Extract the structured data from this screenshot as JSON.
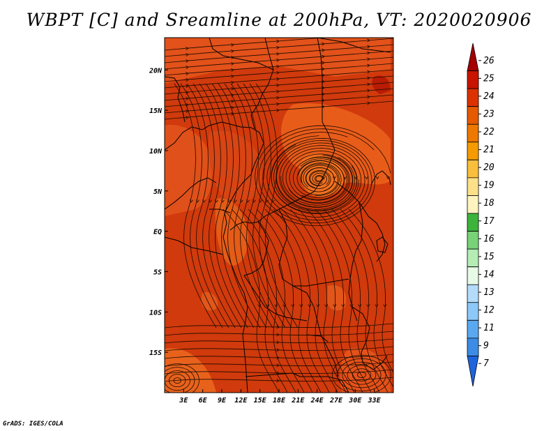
{
  "title": "WBPT [C] and Sreamline at 200hPa, VT: 2020020906",
  "footer": "GrADS: IGES/COLA",
  "map": {
    "lon_range": [
      0,
      36
    ],
    "lat_range": [
      -20,
      24
    ],
    "x_ticks": [
      "3E",
      "6E",
      "9E",
      "12E",
      "15E",
      "18E",
      "21E",
      "24E",
      "27E",
      "30E",
      "33E"
    ],
    "x_tick_values": [
      3,
      6,
      9,
      12,
      15,
      18,
      21,
      24,
      27,
      30,
      33
    ],
    "y_ticks": [
      "20N",
      "15N",
      "10N",
      "5N",
      "EQ",
      "5S",
      "10S",
      "15S"
    ],
    "y_tick_values": [
      20,
      15,
      10,
      5,
      0,
      -5,
      -10,
      -15
    ]
  },
  "colorbar": {
    "levels": [
      "26",
      "25",
      "24",
      "23",
      "22",
      "21",
      "20",
      "19",
      "18",
      "17",
      "16",
      "15",
      "14",
      "13",
      "12",
      "11",
      "9",
      "7"
    ],
    "colors": [
      "#a40000",
      "#c81400",
      "#dc3200",
      "#e65a00",
      "#ee7800",
      "#f59a00",
      "#f8be3c",
      "#fde088",
      "#fff4c0",
      "#3cb43c",
      "#78d278",
      "#b4ecb4",
      "#e6fae6",
      "#b4dcfa",
      "#8cc8f8",
      "#5aa8f0",
      "#3c8ce6",
      "#1e64dc"
    ]
  }
}
